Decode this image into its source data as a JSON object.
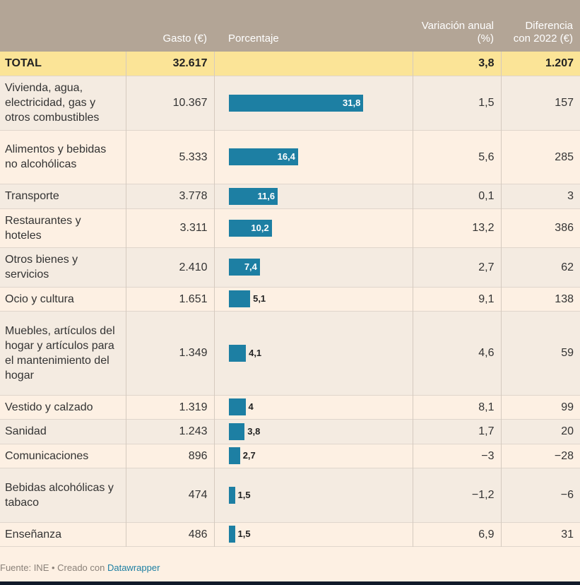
{
  "headers": {
    "category": "",
    "gasto": "Gasto (€)",
    "porcentaje": "Porcentaje",
    "variacion": "Variación anual (%)",
    "diferencia": "Diferencia con 2022 (€)"
  },
  "total": {
    "label": "TOTAL",
    "gasto": "32.617",
    "porcentaje": "",
    "variacion": "3,8",
    "diferencia": "1.207"
  },
  "colors": {
    "bar": "#1d7fa3",
    "header": "#b3a596",
    "total": "#fbe497"
  },
  "chart_data": {
    "type": "table",
    "columns": [
      "",
      "Gasto (€)",
      "Porcentaje",
      "Variación anual (%)",
      "Diferencia con 2022 (€)"
    ],
    "bar_max": 40,
    "rows": [
      {
        "category": "Vivienda, agua, electricidad, gas y otros combustibles",
        "gasto": "10.367",
        "pct": 31.8,
        "pct_label": "31,8",
        "variacion": "1,5",
        "diferencia": "157"
      },
      {
        "category": "Alimentos y bebidas no alcohólicas",
        "gasto": "5.333",
        "pct": 16.4,
        "pct_label": "16,4",
        "variacion": "5,6",
        "diferencia": "285"
      },
      {
        "category": "Transporte",
        "gasto": "3.778",
        "pct": 11.6,
        "pct_label": "11,6",
        "variacion": "0,1",
        "diferencia": "3"
      },
      {
        "category": "Restaurantes y hoteles",
        "gasto": "3.311",
        "pct": 10.2,
        "pct_label": "10,2",
        "variacion": "13,2",
        "diferencia": "386"
      },
      {
        "category": "Otros bienes y servicios",
        "gasto": "2.410",
        "pct": 7.4,
        "pct_label": "7,4",
        "variacion": "2,7",
        "diferencia": "62"
      },
      {
        "category": "Ocio y cultura",
        "gasto": "1.651",
        "pct": 5.1,
        "pct_label": "5,1",
        "variacion": "9,1",
        "diferencia": "138"
      },
      {
        "category": "Muebles, artículos del hogar y artículos para el mantenimiento del hogar",
        "gasto": "1.349",
        "pct": 4.1,
        "pct_label": "4,1",
        "variacion": "4,6",
        "diferencia": "59"
      },
      {
        "category": "Vestido y calzado",
        "gasto": "1.319",
        "pct": 4.0,
        "pct_label": "4",
        "variacion": "8,1",
        "diferencia": "99"
      },
      {
        "category": "Sanidad",
        "gasto": "1.243",
        "pct": 3.8,
        "pct_label": "3,8",
        "variacion": "1,7",
        "diferencia": "20"
      },
      {
        "category": "Comunicaciones",
        "gasto": "896",
        "pct": 2.7,
        "pct_label": "2,7",
        "variacion": "−3",
        "diferencia": "−28"
      },
      {
        "category": "Bebidas alcohólicas y tabaco",
        "gasto": "474",
        "pct": 1.5,
        "pct_label": "1,5",
        "variacion": "−1,2",
        "diferencia": "−6"
      },
      {
        "category": "Enseñanza",
        "gasto": "486",
        "pct": 1.5,
        "pct_label": "1,5",
        "variacion": "6,9",
        "diferencia": "31"
      }
    ]
  },
  "footer": {
    "source": "Fuente: INE • Creado con ",
    "link": "Datawrapper"
  }
}
